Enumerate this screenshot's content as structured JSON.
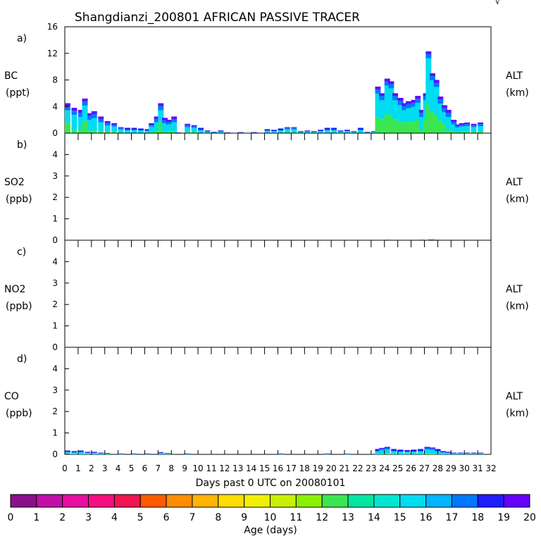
{
  "chart_data": {
    "type": "bar",
    "title": "Shangdianzi_200801 AFRICAN PASSIVE TRACER",
    "corner_mark": "√",
    "xlabel": "Days past 0 UTC on 20080101",
    "x_ticks": [
      "0",
      "1",
      "2",
      "3",
      "4",
      "5",
      "6",
      "7",
      "8",
      "9",
      "10",
      "11",
      "12",
      "13",
      "14",
      "15",
      "16",
      "17",
      "18",
      "19",
      "20",
      "21",
      "22",
      "23",
      "24",
      "25",
      "26",
      "27",
      "28",
      "29",
      "30",
      "31",
      "32"
    ],
    "xlim": [
      0,
      32
    ],
    "panels": [
      {
        "letter": "a)",
        "label": "BC",
        "unit": "(ppt)",
        "right_label": "ALT",
        "right_unit": "(km)",
        "ylim": [
          0,
          16
        ],
        "yticks": [
          "0",
          "4",
          "8",
          "12",
          "16"
        ],
        "ytick_values": [
          0,
          4,
          8,
          12,
          16
        ],
        "series": [
          {
            "day": 0.0,
            "value": 4.5
          },
          {
            "day": 0.5,
            "value": 3.8
          },
          {
            "day": 1.0,
            "value": 3.5
          },
          {
            "day": 1.3,
            "value": 5.2
          },
          {
            "day": 1.7,
            "value": 3.0
          },
          {
            "day": 2.0,
            "value": 3.3
          },
          {
            "day": 2.5,
            "value": 2.5
          },
          {
            "day": 3.0,
            "value": 1.8
          },
          {
            "day": 3.5,
            "value": 1.5
          },
          {
            "day": 4.0,
            "value": 0.9
          },
          {
            "day": 4.5,
            "value": 0.8
          },
          {
            "day": 5.0,
            "value": 0.8
          },
          {
            "day": 5.5,
            "value": 0.7
          },
          {
            "day": 6.0,
            "value": 0.6
          },
          {
            "day": 6.3,
            "value": 1.5
          },
          {
            "day": 6.7,
            "value": 2.5
          },
          {
            "day": 7.0,
            "value": 4.5
          },
          {
            "day": 7.3,
            "value": 2.3
          },
          {
            "day": 7.6,
            "value": 2.0
          },
          {
            "day": 8.0,
            "value": 2.5
          },
          {
            "day": 8.3,
            "value": 0.1
          },
          {
            "day": 9.0,
            "value": 1.4
          },
          {
            "day": 9.5,
            "value": 1.2
          },
          {
            "day": 10.0,
            "value": 0.8
          },
          {
            "day": 10.5,
            "value": 0.4
          },
          {
            "day": 11.0,
            "value": 0.2
          },
          {
            "day": 11.5,
            "value": 0.4
          },
          {
            "day": 12.0,
            "value": 0.1
          },
          {
            "day": 13.0,
            "value": 0.15
          },
          {
            "day": 14.0,
            "value": 0.15
          },
          {
            "day": 15.0,
            "value": 0.6
          },
          {
            "day": 15.5,
            "value": 0.5
          },
          {
            "day": 16.0,
            "value": 0.7
          },
          {
            "day": 16.5,
            "value": 0.9
          },
          {
            "day": 17.0,
            "value": 0.9
          },
          {
            "day": 17.5,
            "value": 0.3
          },
          {
            "day": 18.0,
            "value": 0.4
          },
          {
            "day": 18.5,
            "value": 0.3
          },
          {
            "day": 19.0,
            "value": 0.5
          },
          {
            "day": 19.5,
            "value": 0.8
          },
          {
            "day": 20.0,
            "value": 0.8
          },
          {
            "day": 20.5,
            "value": 0.4
          },
          {
            "day": 21.0,
            "value": 0.5
          },
          {
            "day": 21.5,
            "value": 0.3
          },
          {
            "day": 22.0,
            "value": 0.8
          },
          {
            "day": 22.5,
            "value": 0.2
          },
          {
            "day": 23.0,
            "value": 0.3
          },
          {
            "day": 23.3,
            "value": 7.0
          },
          {
            "day": 23.6,
            "value": 6.0
          },
          {
            "day": 24.0,
            "value": 8.2
          },
          {
            "day": 24.3,
            "value": 7.8
          },
          {
            "day": 24.6,
            "value": 6.0
          },
          {
            "day": 25.0,
            "value": 5.3
          },
          {
            "day": 25.3,
            "value": 4.5
          },
          {
            "day": 25.6,
            "value": 4.8
          },
          {
            "day": 26.0,
            "value": 5.0
          },
          {
            "day": 26.3,
            "value": 5.6
          },
          {
            "day": 26.6,
            "value": 3.5
          },
          {
            "day": 26.9,
            "value": 6.0
          },
          {
            "day": 27.1,
            "value": 12.3
          },
          {
            "day": 27.4,
            "value": 9.0
          },
          {
            "day": 27.7,
            "value": 8.0
          },
          {
            "day": 28.0,
            "value": 5.5
          },
          {
            "day": 28.3,
            "value": 4.2
          },
          {
            "day": 28.6,
            "value": 3.5
          },
          {
            "day": 29.0,
            "value": 2.0
          },
          {
            "day": 29.3,
            "value": 1.3
          },
          {
            "day": 29.6,
            "value": 1.5
          },
          {
            "day": 30.0,
            "value": 1.6
          },
          {
            "day": 30.5,
            "value": 1.4
          },
          {
            "day": 31.0,
            "value": 1.6
          }
        ]
      },
      {
        "letter": "b)",
        "label": "SO2",
        "unit": "(ppb)",
        "right_label": "ALT",
        "right_unit": "(km)",
        "ylim": [
          0,
          5
        ],
        "yticks": [
          "0",
          "1",
          "2",
          "3",
          "4"
        ],
        "ytick_values": [
          0,
          1,
          2,
          3,
          4
        ],
        "series": [
          {
            "day": 24.0,
            "value": 0.02
          },
          {
            "day": 26.6,
            "value": 0.02
          },
          {
            "day": 27.3,
            "value": 0.03
          },
          {
            "day": 27.7,
            "value": 0.02
          }
        ]
      },
      {
        "letter": "c)",
        "label": "NO2",
        "unit": "(ppb)",
        "right_label": "ALT",
        "right_unit": "(km)",
        "ylim": [
          0,
          5
        ],
        "yticks": [
          "0",
          "1",
          "2",
          "3",
          "4"
        ],
        "ytick_values": [
          0,
          1,
          2,
          3,
          4
        ],
        "series": []
      },
      {
        "letter": "d)",
        "label": "CO",
        "unit": "(ppb)",
        "right_label": "ALT",
        "right_unit": "(km)",
        "ylim": [
          0,
          5
        ],
        "yticks": [
          "0",
          "1",
          "2",
          "3",
          "4"
        ],
        "ytick_values": [
          0,
          1,
          2,
          3,
          4
        ],
        "series": [
          {
            "day": 0.0,
            "value": 0.18
          },
          {
            "day": 0.5,
            "value": 0.15
          },
          {
            "day": 1.0,
            "value": 0.18
          },
          {
            "day": 1.5,
            "value": 0.12
          },
          {
            "day": 2.0,
            "value": 0.12
          },
          {
            "day": 2.5,
            "value": 0.08
          },
          {
            "day": 3.0,
            "value": 0.06
          },
          {
            "day": 4.0,
            "value": 0.04
          },
          {
            "day": 5.0,
            "value": 0.04
          },
          {
            "day": 6.0,
            "value": 0.04
          },
          {
            "day": 7.0,
            "value": 0.1
          },
          {
            "day": 7.5,
            "value": 0.06
          },
          {
            "day": 9.0,
            "value": 0.04
          },
          {
            "day": 16.0,
            "value": 0.04
          },
          {
            "day": 19.5,
            "value": 0.04
          },
          {
            "day": 21.0,
            "value": 0.03
          },
          {
            "day": 23.3,
            "value": 0.25
          },
          {
            "day": 23.6,
            "value": 0.3
          },
          {
            "day": 24.0,
            "value": 0.35
          },
          {
            "day": 24.5,
            "value": 0.25
          },
          {
            "day": 25.0,
            "value": 0.22
          },
          {
            "day": 25.5,
            "value": 0.2
          },
          {
            "day": 26.0,
            "value": 0.22
          },
          {
            "day": 26.5,
            "value": 0.25
          },
          {
            "day": 27.0,
            "value": 0.35
          },
          {
            "day": 27.4,
            "value": 0.32
          },
          {
            "day": 27.8,
            "value": 0.25
          },
          {
            "day": 28.2,
            "value": 0.15
          },
          {
            "day": 28.6,
            "value": 0.12
          },
          {
            "day": 29.0,
            "value": 0.08
          },
          {
            "day": 29.5,
            "value": 0.08
          },
          {
            "day": 30.0,
            "value": 0.08
          },
          {
            "day": 30.5,
            "value": 0.08
          },
          {
            "day": 31.0,
            "value": 0.08
          }
        ]
      }
    ],
    "colorbar": {
      "label": "Age (days)",
      "ticks": [
        "0",
        "1",
        "2",
        "3",
        "4",
        "5",
        "6",
        "7",
        "8",
        "9",
        "10",
        "11",
        "12",
        "13",
        "14",
        "15",
        "16",
        "17",
        "18",
        "19",
        "20"
      ],
      "colors": [
        "#8b0f8b",
        "#c20fa8",
        "#e60fa0",
        "#f50f80",
        "#f01450",
        "#ff5a00",
        "#ff8c00",
        "#ffb400",
        "#ffdc00",
        "#f0f000",
        "#c8f000",
        "#8cf000",
        "#3ce650",
        "#00e6a0",
        "#00e6d2",
        "#00dcf0",
        "#00b4ff",
        "#0078ff",
        "#1e1eff",
        "#6400ff"
      ]
    }
  }
}
